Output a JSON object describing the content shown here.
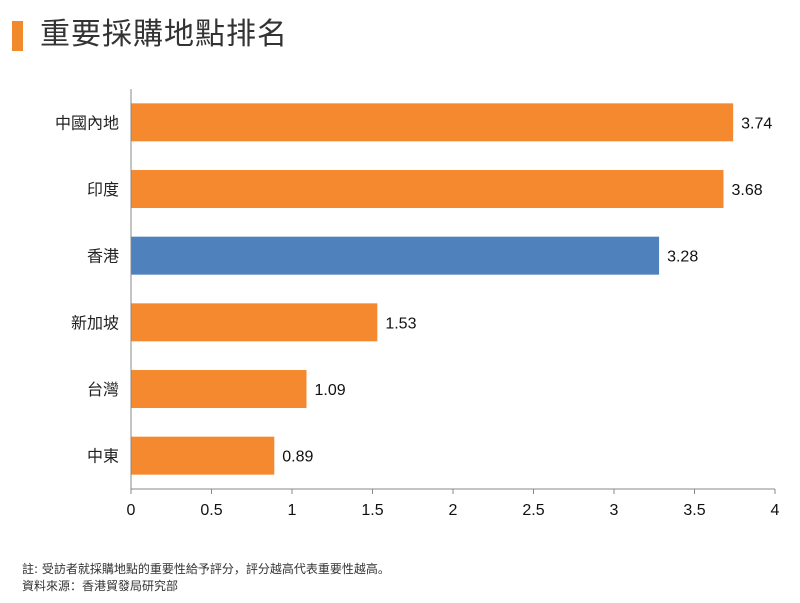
{
  "title": "重要採購地點排名",
  "chart_data": {
    "type": "bar",
    "orientation": "horizontal",
    "categories": [
      "中國內地",
      "印度",
      "香港",
      "新加坡",
      "台灣",
      "中東"
    ],
    "values": [
      3.74,
      3.68,
      3.28,
      1.53,
      1.09,
      0.89
    ],
    "value_labels": [
      "3.74",
      "3.68",
      "3.28",
      "1.53",
      "1.09",
      "0.89"
    ],
    "xlim": [
      0,
      4
    ],
    "x_ticks": [
      0,
      0.5,
      1,
      1.5,
      2,
      2.5,
      3,
      3.5,
      4
    ],
    "x_tick_labels": [
      "0",
      "0.5",
      "1",
      "1.5",
      "2",
      "2.5",
      "3",
      "3.5",
      "4"
    ],
    "grid": false,
    "colors": {
      "default": "#f5892f",
      "highlight": "#4f81bd",
      "highlight_category": "香港"
    }
  },
  "footer": {
    "note": "註: 受訪者就採購地點的重要性給予評分，評分越高代表重要性越高。",
    "source": "資料來源：香港貿發局研究部"
  }
}
